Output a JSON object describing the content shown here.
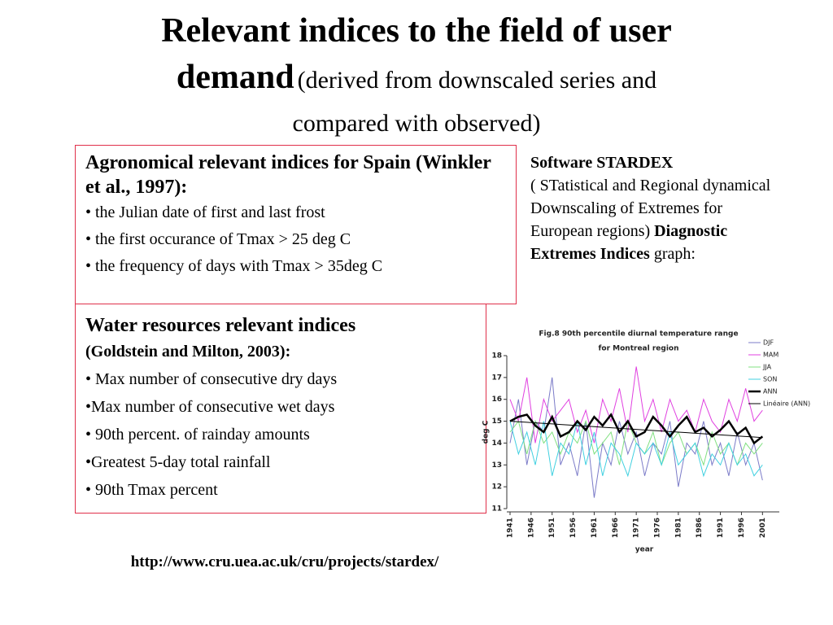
{
  "header": {
    "title_line1": "Relevant indices to the field of user",
    "title_bold2": "demand",
    "title_rest2": "(derived from downscaled series and",
    "title_line3": "compared with observed)"
  },
  "box1": {
    "heading": "Agronomical relevant indices  for Spain (Winkler et al., 1997):",
    "items": [
      "• the Julian date of first and last frost",
      "• the first occurance of Tmax > 25 deg C",
      "• the frequency of days with Tmax > 35deg C"
    ]
  },
  "box2": {
    "heading": "Water resources relevant indices",
    "subheading": "(Goldstein and Milton, 2003):",
    "items": [
      "• Max number of consecutive dry days",
      "•Max number of consecutive wet days",
      "• 90th percent. of rainday amounts",
      "•Greatest 5-day total rainfall",
      "• 90th Tmax percent"
    ]
  },
  "side": {
    "bold1": "Software STARDEX",
    "text1": "( STatistical and Regional dynamical Downscaling of  Extremes for European regions) ",
    "bold2": "Diagnostic Extremes Indices",
    "text2": "  graph:"
  },
  "url": "http://www.cru.uea.ac.uk/cru/projects/stardex/",
  "chart_data": {
    "type": "line",
    "title": "Fig.8  90th percentile diurnal temperature range",
    "subtitle": "for Montreal region",
    "x_label": "year",
    "y_label": "deg C",
    "x": [
      1941,
      1943,
      1945,
      1947,
      1949,
      1951,
      1953,
      1955,
      1957,
      1959,
      1961,
      1963,
      1965,
      1967,
      1969,
      1971,
      1973,
      1975,
      1977,
      1979,
      1981,
      1983,
      1985,
      1987,
      1989,
      1991,
      1993,
      1995,
      1997,
      1999,
      2001
    ],
    "xlim": [
      1941,
      2005
    ],
    "xticks": [
      1941,
      1946,
      1951,
      1956,
      1961,
      1966,
      1971,
      1976,
      1981,
      1986,
      1991,
      1996,
      2001
    ],
    "ylim": [
      11,
      18
    ],
    "yticks": [
      11,
      12,
      13,
      14,
      15,
      16,
      17,
      18
    ],
    "legend": "upper right",
    "series": [
      {
        "name": "DJF",
        "color": "#7b7bc8",
        "width": 1,
        "values": [
          14,
          16,
          13,
          15,
          14.5,
          17,
          13,
          14,
          12.5,
          15,
          11.5,
          14,
          13,
          15,
          13.5,
          14.5,
          12.5,
          14,
          13.5,
          15,
          12,
          14,
          13.5,
          15,
          13,
          14,
          12.5,
          14.5,
          13,
          14,
          12.3
        ]
      },
      {
        "name": "MAM",
        "color": "#e040e0",
        "width": 1,
        "values": [
          16,
          15,
          17,
          14,
          16,
          15,
          15.5,
          16,
          14.5,
          15.5,
          14,
          16,
          15,
          16.5,
          14.5,
          17.5,
          15,
          16,
          14.5,
          16,
          15,
          15.5,
          14.5,
          16,
          15,
          14.5,
          16,
          15,
          16.5,
          15,
          15.5
        ]
      },
      {
        "name": "JJA",
        "color": "#80e080",
        "width": 1,
        "values": [
          14.5,
          15,
          13.5,
          15,
          14,
          14.5,
          13.5,
          14.5,
          14,
          15,
          13.5,
          14,
          14.5,
          13,
          15,
          14,
          13.5,
          14.5,
          13,
          14,
          14.5,
          13.5,
          14,
          13,
          14.5,
          13.5,
          14,
          13,
          14,
          13.5,
          14
        ]
      },
      {
        "name": "SON",
        "color": "#40d0e0",
        "width": 1,
        "values": [
          15,
          13.5,
          14.5,
          13,
          15,
          12.5,
          14,
          13.5,
          15,
          13,
          14.5,
          12.5,
          14,
          13.5,
          12.5,
          14,
          13.5,
          14,
          13,
          14.5,
          13,
          13.5,
          14,
          12.5,
          13.5,
          13,
          14,
          13,
          13.5,
          12.5,
          13
        ]
      },
      {
        "name": "ANN",
        "color": "#000000",
        "width": 2.5,
        "values": [
          15,
          15.2,
          15.3,
          14.8,
          14.5,
          15.2,
          14.3,
          14.5,
          15,
          14.6,
          15.2,
          14.8,
          15.3,
          14.5,
          15,
          14.3,
          14.5,
          15.2,
          14.8,
          14.3,
          14.8,
          15.2,
          14.5,
          14.7,
          14.3,
          14.6,
          15,
          14.4,
          14.7,
          14,
          14.3
        ]
      },
      {
        "name": "Linéaire (ANN)",
        "color": "#000000",
        "width": 1,
        "values": [
          15,
          14.975,
          14.95,
          14.925,
          14.9,
          14.875,
          14.85,
          14.825,
          14.8,
          14.775,
          14.75,
          14.725,
          14.7,
          14.675,
          14.65,
          14.625,
          14.6,
          14.575,
          14.55,
          14.525,
          14.5,
          14.475,
          14.45,
          14.425,
          14.4,
          14.375,
          14.35,
          14.325,
          14.3,
          14.275,
          14.25
        ]
      }
    ]
  }
}
